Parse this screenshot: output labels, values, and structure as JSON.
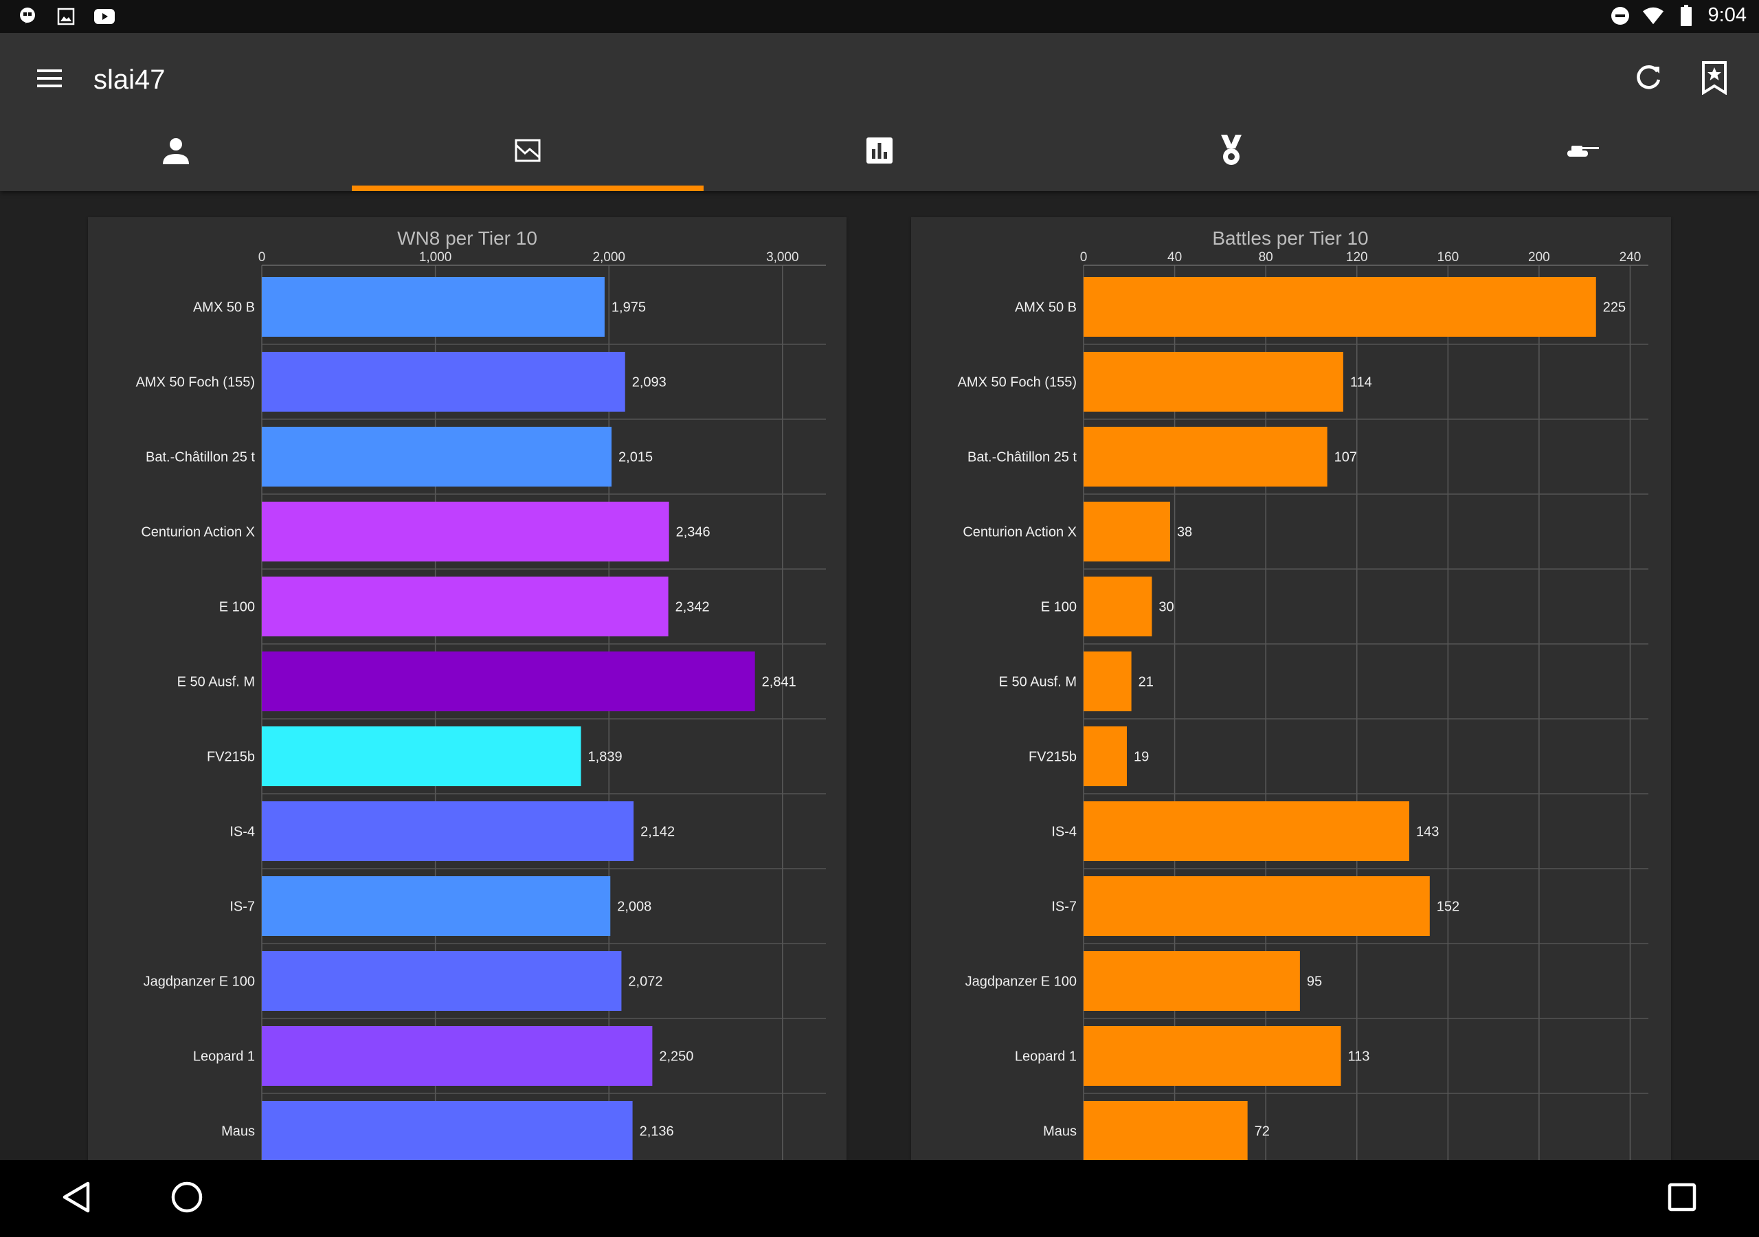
{
  "status_bar": {
    "time": "9:04",
    "left_icons": [
      "hangouts-icon",
      "image-icon",
      "youtube-icon"
    ],
    "right_icons": [
      "do-not-disturb-icon",
      "wifi-icon",
      "battery-icon"
    ]
  },
  "app_bar": {
    "title": "slai47",
    "background": "#333333",
    "accent": "#ff8a00"
  },
  "tabs": [
    {
      "icon": "person-icon",
      "selected": false
    },
    {
      "icon": "area-chart-icon",
      "selected": true
    },
    {
      "icon": "bar-chart-icon",
      "selected": false
    },
    {
      "icon": "medal-icon",
      "selected": false
    },
    {
      "icon": "tank-icon",
      "selected": false
    }
  ],
  "chart_data": [
    {
      "type": "bar",
      "orientation": "horizontal",
      "title": "WN8 per Tier 10",
      "categories": [
        "AMX 50 B",
        "AMX 50 Foch (155)",
        "Bat.-Châtillon 25 t",
        "Centurion Action X",
        "E 100",
        "E 50 Ausf. M",
        "FV215b",
        "IS-4",
        "IS-7",
        "Jagdpanzer E 100",
        "Leopard 1",
        "Maus"
      ],
      "values": [
        1975,
        2093,
        2015,
        2346,
        2342,
        2841,
        1839,
        2142,
        2008,
        2072,
        2250,
        2136
      ],
      "value_labels": [
        "1,975",
        "2,093",
        "2,015",
        "2,346",
        "2,342",
        "2,841",
        "1,839",
        "2,142",
        "2,008",
        "2,072",
        "2,250",
        "2,136"
      ],
      "colors": [
        "#4a90ff",
        "#5a6aff",
        "#4a90ff",
        "#c040ff",
        "#c040ff",
        "#8400c8",
        "#30f2ff",
        "#5a6aff",
        "#4a90ff",
        "#5a6aff",
        "#8a48ff",
        "#5a6aff"
      ],
      "xlim": [
        0,
        3250
      ],
      "ticks": [
        0,
        1000,
        2000,
        3000
      ],
      "tick_labels": [
        "0",
        "1,000",
        "2,000",
        "3,000"
      ],
      "axis_position": "top",
      "grid": true
    },
    {
      "type": "bar",
      "orientation": "horizontal",
      "title": "Battles per Tier 10",
      "categories": [
        "AMX 50 B",
        "AMX 50 Foch (155)",
        "Bat.-Châtillon 25 t",
        "Centurion Action X",
        "E 100",
        "E 50 Ausf. M",
        "FV215b",
        "IS-4",
        "IS-7",
        "Jagdpanzer E 100",
        "Leopard 1",
        "Maus"
      ],
      "values": [
        225,
        114,
        107,
        38,
        30,
        21,
        19,
        143,
        152,
        95,
        113,
        72
      ],
      "value_labels": [
        "225",
        "114",
        "107",
        "38",
        "30",
        "21",
        "19",
        "143",
        "152",
        "95",
        "113",
        "72"
      ],
      "colors": [
        "#ff8a00"
      ],
      "xlim": [
        0,
        248
      ],
      "ticks": [
        0,
        40,
        80,
        120,
        160,
        200,
        240
      ],
      "tick_labels": [
        "0",
        "40",
        "80",
        "120",
        "160",
        "200",
        "240"
      ],
      "axis_position": "top",
      "grid": true
    }
  ]
}
